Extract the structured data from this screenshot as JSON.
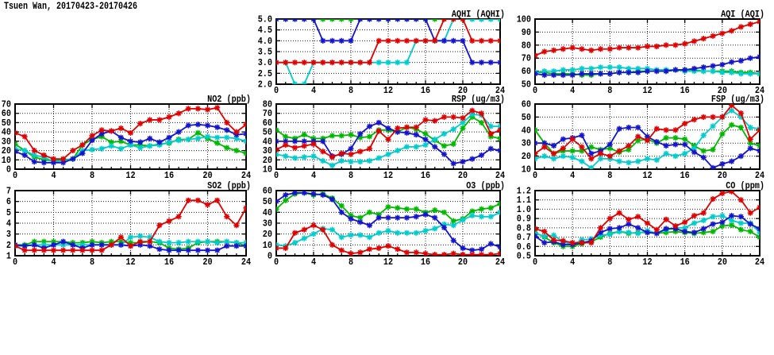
{
  "page_title": "Tsuen Wan, 20170423-20170426",
  "colors": {
    "red": "#e00000",
    "blue": "#1414cc",
    "green": "#00b800",
    "cyan": "#00cccc"
  },
  "x_axis": {
    "min": 0,
    "max": 24,
    "ticks": [
      0,
      4,
      8,
      12,
      16,
      20,
      24
    ],
    "marker_step": 1
  },
  "chart_data": [
    {
      "id": "aqhi",
      "type": "line",
      "title": "AQHI (AQHI)",
      "ylim": [
        2,
        5
      ],
      "yticks": [
        2.0,
        2.5,
        3.0,
        3.5,
        4.0,
        4.5,
        5.0
      ],
      "ydecimals": 1,
      "series": [
        {
          "name": "green",
          "color": "green",
          "values": [
            5,
            5,
            5,
            5,
            5,
            5,
            5,
            5,
            5,
            5,
            5,
            5,
            5,
            5,
            5,
            5,
            5,
            5,
            5,
            5,
            5,
            5,
            5,
            5,
            5
          ]
        },
        {
          "name": "cyan",
          "color": "cyan",
          "values": [
            3,
            3,
            2,
            2,
            3,
            3,
            3,
            3,
            3,
            3,
            3,
            3,
            3,
            3,
            3,
            4,
            4,
            4,
            4,
            5,
            5,
            5,
            5,
            5,
            5
          ]
        },
        {
          "name": "blue",
          "color": "blue",
          "values": [
            5,
            5,
            5,
            5,
            5,
            4,
            4,
            4,
            4,
            5,
            5,
            5,
            5,
            5,
            5,
            5,
            5,
            4,
            4,
            4,
            4,
            3,
            3,
            3,
            3
          ]
        },
        {
          "name": "red",
          "color": "red",
          "values": [
            3,
            3,
            3,
            3,
            3,
            3,
            3,
            3,
            3,
            3,
            3,
            4,
            4,
            4,
            4,
            4,
            4,
            4,
            5,
            5,
            5,
            4,
            4,
            4,
            4
          ]
        }
      ]
    },
    {
      "id": "aqi",
      "type": "line",
      "title": "AQI (AQI)",
      "ylim": [
        50,
        100
      ],
      "yticks": [
        50,
        60,
        70,
        80,
        90,
        100
      ],
      "ydecimals": 0,
      "series": [
        {
          "name": "green",
          "color": "green",
          "values": [
            59,
            59,
            58,
            58,
            58,
            57,
            57,
            58,
            58,
            59,
            59,
            60,
            60,
            60,
            60,
            61,
            61,
            61,
            60,
            60,
            60,
            60,
            59,
            59,
            58
          ]
        },
        {
          "name": "cyan",
          "color": "cyan",
          "values": [
            59,
            60,
            60,
            61,
            61,
            62,
            62,
            63,
            63,
            63,
            62,
            62,
            62,
            61,
            61,
            61,
            60,
            60,
            60,
            60,
            59,
            59,
            58,
            58,
            58
          ]
        },
        {
          "name": "blue",
          "color": "blue",
          "values": [
            58,
            57,
            57,
            57,
            57,
            58,
            58,
            58,
            58,
            59,
            59,
            59,
            60,
            60,
            60,
            61,
            61,
            62,
            63,
            64,
            65,
            67,
            68,
            70,
            71
          ]
        },
        {
          "name": "red",
          "color": "red",
          "values": [
            72,
            75,
            76,
            77,
            78,
            77,
            76,
            77,
            77,
            78,
            78,
            78,
            79,
            79,
            80,
            80,
            81,
            83,
            85,
            87,
            89,
            91,
            94,
            96,
            98
          ]
        }
      ]
    },
    {
      "id": "no2",
      "type": "line",
      "title": "NO2 (ppb)",
      "ylim": [
        0,
        70
      ],
      "yticks": [
        0,
        10,
        20,
        30,
        40,
        50,
        60,
        70
      ],
      "ydecimals": 0,
      "series": [
        {
          "name": "green",
          "color": "green",
          "values": [
            27,
            20,
            13,
            10,
            9,
            10,
            11,
            26,
            32,
            35,
            29,
            30,
            26,
            26,
            25,
            27,
            28,
            32,
            32,
            39,
            33,
            28,
            23,
            20,
            17
          ]
        },
        {
          "name": "cyan",
          "color": "cyan",
          "values": [
            22,
            20,
            15,
            13,
            8,
            9,
            11,
            20,
            21,
            22,
            25,
            22,
            26,
            23,
            25,
            26,
            29,
            31,
            32,
            33,
            35,
            34,
            34,
            33,
            30
          ]
        },
        {
          "name": "blue",
          "color": "blue",
          "values": [
            19,
            15,
            8,
            7,
            7,
            7,
            11,
            17,
            31,
            38,
            41,
            34,
            30,
            29,
            33,
            29,
            34,
            40,
            47,
            48,
            47,
            45,
            42,
            37,
            38
          ]
        },
        {
          "name": "red",
          "color": "red",
          "values": [
            39,
            35,
            20,
            15,
            11,
            11,
            20,
            26,
            36,
            42,
            41,
            44,
            39,
            49,
            53,
            53,
            56,
            60,
            65,
            65,
            64,
            66,
            50,
            40,
            48
          ]
        }
      ]
    },
    {
      "id": "rsp",
      "type": "line",
      "title": "RSP (ug/m3)",
      "ylim": [
        10,
        80
      ],
      "yticks": [
        10,
        20,
        30,
        40,
        50,
        60,
        70,
        80
      ],
      "ydecimals": 0,
      "series": [
        {
          "name": "green",
          "color": "green",
          "values": [
            52,
            45,
            43,
            47,
            43,
            43,
            46,
            46,
            47,
            44,
            45,
            52,
            52,
            50,
            55,
            53,
            48,
            41,
            35,
            37,
            54,
            66,
            60,
            45,
            43
          ]
        },
        {
          "name": "cyan",
          "color": "cyan",
          "values": [
            26,
            24,
            22,
            23,
            24,
            19,
            14,
            19,
            18,
            18,
            19,
            22,
            26,
            30,
            34,
            34,
            36,
            42,
            48,
            53,
            60,
            69,
            68,
            56,
            56
          ]
        },
        {
          "name": "blue",
          "color": "blue",
          "values": [
            40,
            40,
            40,
            40,
            40,
            40,
            24,
            26,
            32,
            48,
            56,
            60,
            54,
            50,
            49,
            47,
            42,
            34,
            26,
            16,
            18,
            21,
            25,
            32,
            30
          ]
        },
        {
          "name": "red",
          "color": "red",
          "values": [
            31,
            36,
            33,
            35,
            37,
            29,
            23,
            27,
            26,
            29,
            32,
            51,
            42,
            54,
            55,
            55,
            63,
            62,
            66,
            66,
            65,
            73,
            70,
            48,
            52
          ]
        }
      ]
    },
    {
      "id": "fsp",
      "type": "line",
      "title": "FSP (ug/m3)",
      "ylim": [
        10,
        60
      ],
      "yticks": [
        10,
        20,
        30,
        40,
        50,
        60
      ],
      "ydecimals": 0,
      "series": [
        {
          "name": "green",
          "color": "green",
          "values": [
            40,
            30,
            22,
            24,
            24,
            24,
            27,
            25,
            26,
            23,
            25,
            32,
            33,
            30,
            34,
            34,
            33,
            28,
            24,
            25,
            37,
            44,
            42,
            30,
            28
          ]
        },
        {
          "name": "cyan",
          "color": "cyan",
          "values": [
            18,
            20,
            18,
            20,
            19,
            16,
            11,
            18,
            18,
            16,
            15,
            16,
            18,
            17,
            22,
            20,
            22,
            26,
            36,
            43,
            50,
            55,
            50,
            42,
            41
          ]
        },
        {
          "name": "blue",
          "color": "blue",
          "values": [
            30,
            30,
            28,
            33,
            34,
            36,
            22,
            24,
            29,
            41,
            42,
            42,
            35,
            31,
            28,
            29,
            29,
            23,
            19,
            11,
            14,
            16,
            20,
            26,
            24
          ]
        },
        {
          "name": "red",
          "color": "red",
          "values": [
            22,
            27,
            22,
            26,
            33,
            27,
            18,
            22,
            20,
            24,
            28,
            35,
            32,
            41,
            40,
            40,
            45,
            48,
            50,
            50,
            50,
            59,
            53,
            33,
            40
          ]
        }
      ]
    },
    {
      "id": "so2",
      "type": "line",
      "title": "SO2 (ppb)",
      "ylim": [
        1,
        7
      ],
      "yticks": [
        1,
        2,
        3,
        4,
        5,
        6,
        7
      ],
      "ydecimals": 0,
      "series": [
        {
          "name": "green",
          "color": "green",
          "values": [
            2.0,
            2.0,
            2.3,
            2.3,
            2.3,
            2.3,
            2.2,
            2.2,
            2.3,
            2.2,
            2.3,
            2.3,
            2.2,
            2.2,
            2.3,
            2.2,
            1.7,
            1.6,
            1.7,
            2.2,
            2.3,
            2.3,
            2.3,
            2.2,
            1.9
          ]
        },
        {
          "name": "cyan",
          "color": "cyan",
          "values": [
            1.9,
            1.9,
            2.0,
            2.0,
            2.0,
            2.0,
            2.0,
            2.0,
            2.0,
            2.0,
            2.0,
            2.0,
            2.7,
            2.8,
            2.7,
            2.3,
            2.2,
            2.2,
            2.3,
            2.3,
            2.3,
            2.2,
            2.3,
            2.2,
            2.2
          ]
        },
        {
          "name": "blue",
          "color": "blue",
          "values": [
            2.0,
            1.9,
            2.0,
            1.7,
            2.0,
            2.3,
            2.0,
            1.7,
            2.0,
            2.0,
            2.0,
            2.0,
            1.9,
            2.0,
            1.9,
            1.6,
            1.5,
            1.5,
            1.5,
            1.5,
            1.5,
            1.5,
            1.9,
            1.9,
            1.9
          ]
        },
        {
          "name": "red",
          "color": "red",
          "values": [
            1.9,
            1.5,
            1.5,
            1.5,
            1.5,
            1.5,
            1.5,
            1.5,
            1.5,
            1.5,
            2.0,
            2.7,
            1.9,
            2.3,
            2.3,
            3.8,
            4.2,
            4.6,
            6.1,
            6.1,
            5.7,
            6.1,
            4.6,
            3.8,
            5.4
          ]
        }
      ]
    },
    {
      "id": "o3",
      "type": "line",
      "title": "O3 (ppb)",
      "ylim": [
        0,
        60
      ],
      "yticks": [
        0,
        10,
        20,
        30,
        40,
        50,
        60
      ],
      "ydecimals": 0,
      "series": [
        {
          "name": "green",
          "color": "green",
          "values": [
            43,
            51,
            57,
            58,
            56,
            57,
            53,
            46,
            37,
            35,
            40,
            38,
            45,
            44,
            43,
            43,
            40,
            42,
            40,
            32,
            34,
            41,
            43,
            44,
            48
          ]
        },
        {
          "name": "cyan",
          "color": "cyan",
          "values": [
            10,
            9,
            12,
            16,
            20,
            25,
            24,
            17,
            19,
            19,
            17,
            21,
            23,
            21,
            21,
            21,
            23,
            25,
            29,
            28,
            33,
            37,
            36,
            36,
            40
          ]
        },
        {
          "name": "blue",
          "color": "blue",
          "values": [
            50,
            56,
            58,
            58,
            57,
            56,
            52,
            40,
            34,
            31,
            28,
            35,
            35,
            35,
            35,
            36,
            38,
            35,
            26,
            14,
            7,
            5,
            6,
            11,
            8
          ]
        },
        {
          "name": "red",
          "color": "red",
          "values": [
            7,
            7,
            21,
            24,
            28,
            24,
            10,
            5,
            2,
            3,
            6,
            7,
            9,
            6,
            3,
            3,
            2,
            1,
            1,
            2,
            1,
            1,
            1,
            1,
            2
          ]
        }
      ]
    },
    {
      "id": "co",
      "type": "line",
      "title": "CO (ppm)",
      "ylim": [
        0.5,
        1.2
      ],
      "yticks": [
        0.5,
        0.6,
        0.7,
        0.8,
        0.9,
        1.0,
        1.1,
        1.2
      ],
      "ydecimals": 1,
      "series": [
        {
          "name": "green",
          "color": "green",
          "values": [
            0.75,
            0.7,
            0.64,
            0.6,
            0.6,
            0.63,
            0.65,
            0.7,
            0.74,
            0.76,
            0.74,
            0.75,
            0.75,
            0.74,
            0.75,
            0.76,
            0.75,
            0.74,
            0.75,
            0.76,
            0.82,
            0.83,
            0.78,
            0.76,
            0.7
          ]
        },
        {
          "name": "cyan",
          "color": "cyan",
          "values": [
            0.74,
            0.71,
            0.72,
            0.65,
            0.62,
            0.67,
            0.68,
            0.72,
            0.73,
            0.76,
            0.75,
            0.74,
            0.77,
            0.74,
            0.78,
            0.8,
            0.8,
            0.85,
            0.88,
            0.92,
            0.93,
            0.88,
            0.85,
            0.85,
            0.75
          ]
        },
        {
          "name": "blue",
          "color": "blue",
          "values": [
            0.71,
            0.64,
            0.65,
            0.62,
            0.62,
            0.64,
            0.66,
            0.75,
            0.79,
            0.8,
            0.84,
            0.8,
            0.75,
            0.74,
            0.79,
            0.79,
            0.76,
            0.75,
            0.79,
            0.84,
            0.86,
            0.93,
            0.92,
            0.84,
            0.79
          ]
        },
        {
          "name": "red",
          "color": "red",
          "values": [
            0.79,
            0.76,
            0.67,
            0.66,
            0.64,
            0.64,
            0.64,
            0.8,
            0.9,
            0.96,
            0.89,
            0.92,
            0.85,
            0.78,
            0.89,
            0.82,
            0.86,
            0.93,
            0.96,
            1.11,
            1.17,
            1.19,
            1.1,
            0.96,
            1.02
          ]
        }
      ]
    }
  ]
}
